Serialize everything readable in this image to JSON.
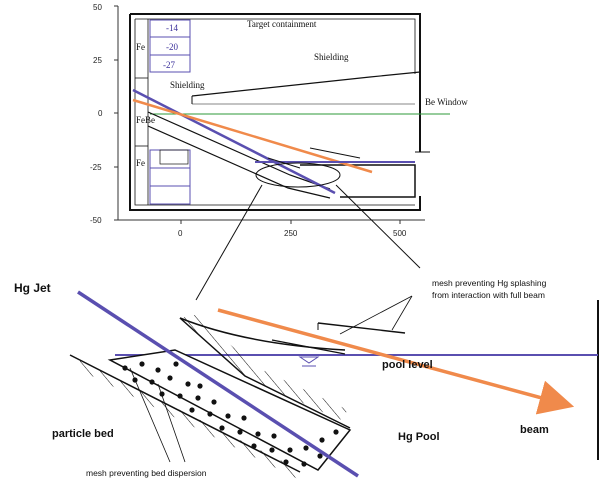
{
  "top_plot": {
    "y_ticks": [
      "50",
      "25",
      "0",
      "-25",
      "-50"
    ],
    "x_ticks": [
      "0",
      "250",
      "500"
    ],
    "labels": {
      "target_containment": "Target containment",
      "shielding_right": "Shielding",
      "shielding_left": "Shielding",
      "be_window": "Be Window",
      "fe_top": "Fe",
      "febe": "FeBe",
      "fe_bottom": "Fe"
    },
    "box_values": [
      "-14",
      "-20",
      "-27"
    ]
  },
  "detail": {
    "hg_jet": "Hg Jet",
    "mesh_top_line1": "mesh preventing Hg splashing",
    "mesh_top_line2": "from interaction with full beam",
    "pool_level": "pool level",
    "particle_bed": "particle bed",
    "hg_pool": "Hg Pool",
    "beam": "beam",
    "mesh_bottom": "mesh preventing bed dispersion"
  },
  "colors": {
    "jet": "#5a4fb0",
    "beam": "#f08a4b",
    "window_line": "#2e9a3a",
    "box_outline": "#5a4fb0",
    "ink": "#111111"
  }
}
